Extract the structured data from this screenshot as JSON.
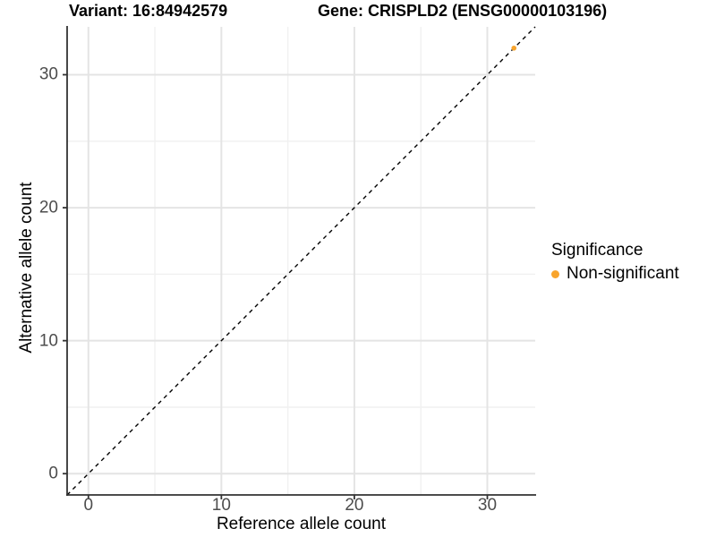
{
  "chart_data": {
    "type": "scatter",
    "titles": {
      "left": "Variant: 16:84942579",
      "right": "Gene: CRISPLD2 (ENSG00000103196)"
    },
    "xlabel": "Reference allele count",
    "ylabel": "Alternative allele count",
    "xlim": [
      -1.6,
      33.6
    ],
    "ylim": [
      -1.6,
      33.6
    ],
    "x_major_ticks": [
      0,
      10,
      20,
      30
    ],
    "y_major_ticks": [
      0,
      10,
      20,
      30
    ],
    "x_minor_ticks": [
      5,
      15,
      25
    ],
    "y_minor_ticks": [
      5,
      15,
      25
    ],
    "grid": "major+minor",
    "reference_line": {
      "type": "identity",
      "equation": "y = x",
      "style": "dashed",
      "color": "#000000"
    },
    "series": [
      {
        "name": "Non-significant",
        "color": "#F8A42C",
        "points": [
          {
            "x": 32,
            "y": 32
          }
        ]
      }
    ],
    "legend": {
      "title": "Significance",
      "position": "right",
      "entries": [
        {
          "label": "Non-significant",
          "color": "#F8A42C",
          "marker": "circle"
        }
      ]
    },
    "colors": {
      "axis_line": "#333333",
      "tick_mark": "#333333",
      "tick_label": "#4D4D4D",
      "grid_major": "#E4E4E4",
      "grid_minor": "#F1F1F1",
      "title": "#000000",
      "background": "#FFFFFF"
    }
  }
}
